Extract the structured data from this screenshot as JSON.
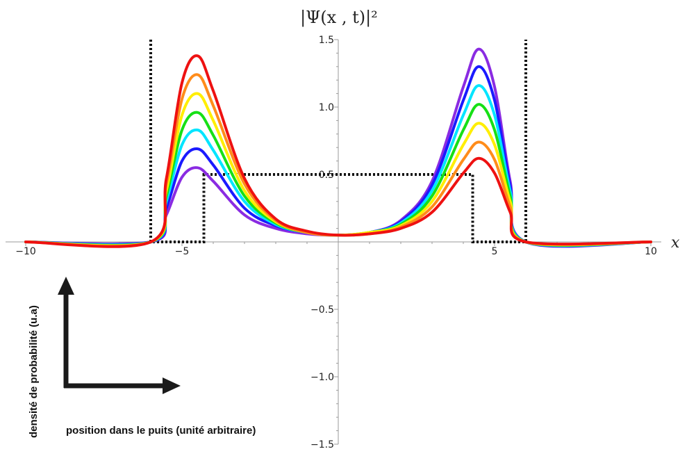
{
  "chart_data": {
    "type": "line",
    "title": "|Ψ(x , t)|²",
    "xlabel": "x",
    "ylabel": "",
    "xlim": [
      -10,
      10
    ],
    "ylim": [
      -1.5,
      1.5
    ],
    "x_ticks": [
      -10,
      -5,
      5,
      10
    ],
    "y_ticks": [
      -1.5,
      -1.0,
      -0.5,
      0.5,
      1.0,
      1.5
    ],
    "grid": false,
    "legend": "none",
    "x": [
      -10,
      -6,
      -5.5,
      -5.0,
      -4.5,
      -4.0,
      -3.0,
      -2.0,
      -1.0,
      0,
      1.0,
      2.0,
      3.0,
      4.0,
      4.5,
      5.0,
      5.5,
      6,
      10
    ],
    "series": [
      {
        "color": "#8a2be2",
        "values": [
          0,
          0,
          0.2,
          0.48,
          0.55,
          0.45,
          0.2,
          0.1,
          0.06,
          0.05,
          0.07,
          0.16,
          0.45,
          1.15,
          1.43,
          1.15,
          0.45,
          0,
          0
        ]
      },
      {
        "color": "#1a1aff",
        "values": [
          0,
          0,
          0.25,
          0.6,
          0.69,
          0.57,
          0.25,
          0.12,
          0.07,
          0.05,
          0.07,
          0.15,
          0.42,
          1.05,
          1.3,
          1.05,
          0.42,
          0,
          0
        ]
      },
      {
        "color": "#00e5ff",
        "values": [
          0,
          0,
          0.3,
          0.72,
          0.83,
          0.68,
          0.3,
          0.13,
          0.07,
          0.05,
          0.07,
          0.14,
          0.38,
          0.94,
          1.16,
          0.94,
          0.38,
          0,
          0
        ]
      },
      {
        "color": "#16e016",
        "values": [
          0,
          0,
          0.34,
          0.83,
          0.96,
          0.79,
          0.34,
          0.14,
          0.07,
          0.05,
          0.07,
          0.13,
          0.34,
          0.83,
          1.02,
          0.83,
          0.34,
          0,
          0
        ]
      },
      {
        "color": "#ffee00",
        "values": [
          0,
          0,
          0.38,
          0.94,
          1.1,
          0.9,
          0.38,
          0.15,
          0.07,
          0.05,
          0.07,
          0.12,
          0.3,
          0.72,
          0.88,
          0.72,
          0.3,
          0,
          0
        ]
      },
      {
        "color": "#ff8c1a",
        "values": [
          0,
          0,
          0.43,
          1.06,
          1.24,
          1.01,
          0.43,
          0.16,
          0.07,
          0.05,
          0.06,
          0.11,
          0.26,
          0.61,
          0.74,
          0.61,
          0.26,
          0,
          0
        ]
      },
      {
        "color": "#ee1111",
        "values": [
          0,
          0,
          0.47,
          1.18,
          1.38,
          1.12,
          0.47,
          0.17,
          0.08,
          0.05,
          0.06,
          0.1,
          0.22,
          0.51,
          0.62,
          0.51,
          0.22,
          0,
          0
        ]
      }
    ],
    "potential": {
      "style": "dotted",
      "color": "#111111",
      "x": [
        -6,
        -6,
        -6,
        -4.3,
        -4.3,
        4.3,
        4.3,
        6,
        6,
        6
      ],
      "y": [
        1.5,
        0,
        0,
        0,
        0.5,
        0.5,
        0,
        0,
        0,
        1.5
      ]
    }
  },
  "annotations": {
    "y_label": "densité de probabilité (u.a)",
    "x_label": "position dans le puits (unité arbitraire)"
  }
}
